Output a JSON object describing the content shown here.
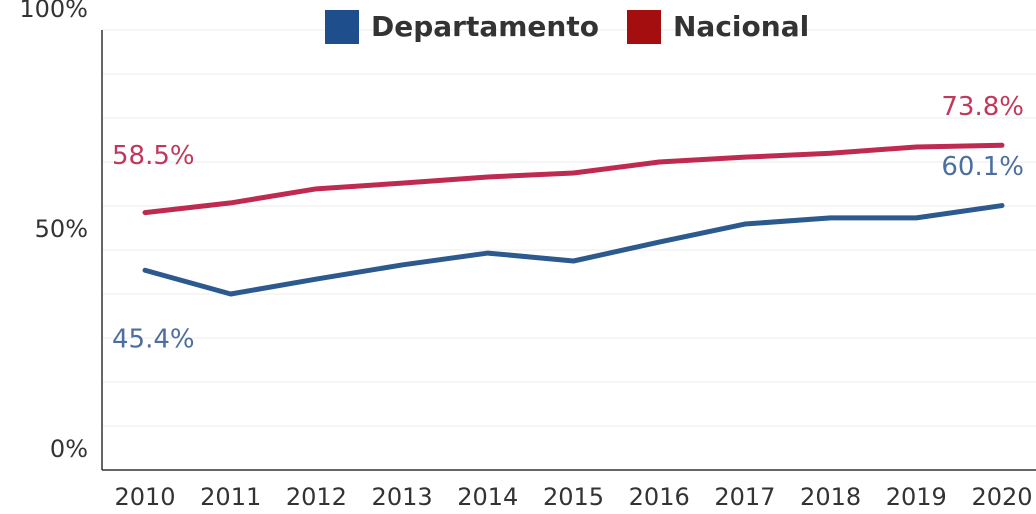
{
  "chart_data": {
    "type": "line",
    "categories": [
      "2010",
      "2011",
      "2012",
      "2013",
      "2014",
      "2015",
      "2016",
      "2017",
      "2018",
      "2019",
      "2020"
    ],
    "series": [
      {
        "name": "Departamento",
        "color": "#2c5a8f",
        "legend_color": "#1f4e8c",
        "label_color": "#4c6f9f",
        "values": [
          45.4,
          40,
          43.4,
          46.6,
          49.3,
          47.5,
          51.8,
          55.9,
          57.3,
          57.3,
          60.1
        ],
        "value_labels": [
          "45.4%",
          null,
          null,
          null,
          null,
          null,
          null,
          null,
          null,
          null,
          "60.1%"
        ]
      },
      {
        "name": "Nacional",
        "color": "#be2a50",
        "legend_color": "#a50e0e",
        "label_color": "#c0395c",
        "values": [
          58.5,
          60.7,
          63.9,
          65.2,
          66.6,
          67.5,
          70,
          71.1,
          72,
          73.4,
          73.8
        ],
        "value_labels": [
          "58.5%",
          null,
          null,
          null,
          null,
          null,
          null,
          null,
          null,
          null,
          "73.8%"
        ]
      }
    ],
    "ylim": [
      0,
      100
    ],
    "yticks": [
      {
        "value": 0,
        "label": "0%"
      },
      {
        "value": 50,
        "label": "50%"
      },
      {
        "value": 100,
        "label": "100%"
      }
    ],
    "minor_yticks": [
      10,
      20,
      30,
      40,
      60,
      70,
      80,
      90
    ],
    "grid": true,
    "legend": "top"
  }
}
